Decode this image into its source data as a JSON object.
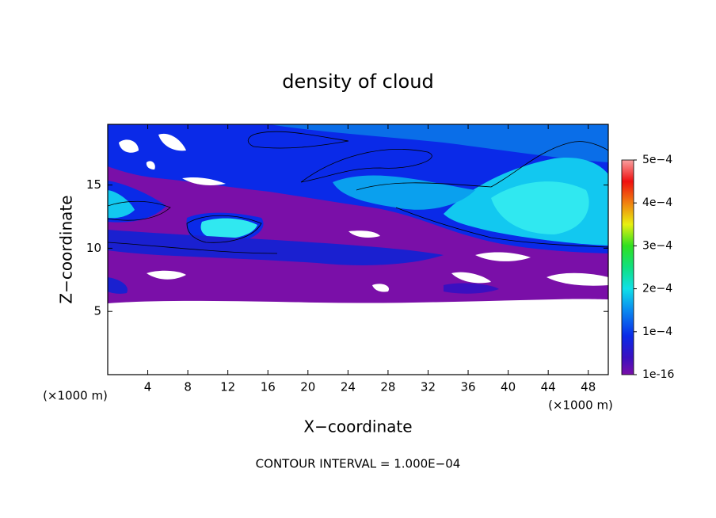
{
  "chart_data": {
    "type": "contour",
    "title": "density of cloud",
    "xlabel": "X−coordinate",
    "ylabel": "Z−coordinate",
    "x_unit": "(×1000 m)",
    "y_unit": "(×1000 m)",
    "annotation": "CONTOUR INTERVAL = 1.000E−04",
    "xlim": [
      0,
      50
    ],
    "ylim": [
      0,
      19.8
    ],
    "xticks": [
      4,
      8,
      12,
      16,
      20,
      24,
      28,
      32,
      36,
      40,
      44,
      48
    ],
    "yticks": [
      5,
      10,
      15
    ],
    "colorbar_lim": [
      0,
      0.0005
    ],
    "colorbar_ticks": [
      1e-16,
      {
        "value": 0.0001,
        "label": "1e−4"
      },
      {
        "value": 0.0002,
        "label": "2e−4"
      },
      {
        "value": 0.0003,
        "label": "3e−4"
      },
      {
        "value": 0.0004,
        "label": "4e−4"
      },
      {
        "value": 0.0005,
        "label": "5e−4"
      }
    ]
  }
}
